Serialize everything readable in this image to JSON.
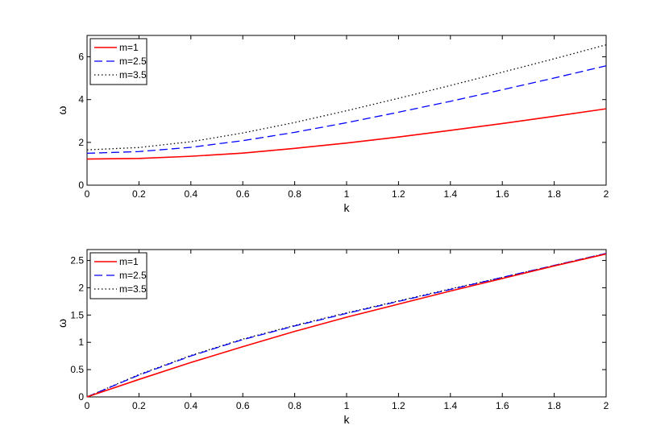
{
  "chart_data": [
    {
      "type": "line",
      "xlabel": "k",
      "ylabel": "ω",
      "xlim": [
        0,
        2
      ],
      "ylim": [
        0,
        7
      ],
      "xticks": [
        "0",
        "0.2",
        "0.4",
        "0.6",
        "0.8",
        "1",
        "1.2",
        "1.4",
        "1.6",
        "1.8",
        "2"
      ],
      "yticks": [
        "0",
        "2",
        "4",
        "6"
      ],
      "grid": false,
      "legend": "top-left",
      "x": [
        0,
        0.2,
        0.4,
        0.6,
        0.8,
        1.0,
        1.2,
        1.4,
        1.6,
        1.8,
        2.0
      ],
      "series": [
        {
          "name": "m=1",
          "style": "solid",
          "color": "#ff0000",
          "values": [
            1.22,
            1.25,
            1.35,
            1.5,
            1.72,
            1.97,
            2.25,
            2.56,
            2.88,
            3.22,
            3.57
          ]
        },
        {
          "name": "m=2.5",
          "style": "dashed",
          "color": "#0000ff",
          "values": [
            1.49,
            1.57,
            1.77,
            2.08,
            2.47,
            2.92,
            3.41,
            3.92,
            4.46,
            5.01,
            5.58
          ]
        },
        {
          "name": "m=3.5",
          "style": "dotted",
          "color": "#000000",
          "values": [
            1.65,
            1.76,
            2.03,
            2.44,
            2.93,
            3.48,
            4.06,
            4.66,
            5.28,
            5.91,
            6.56
          ]
        }
      ]
    },
    {
      "type": "line",
      "xlabel": "k",
      "ylabel": "ω",
      "xlim": [
        0,
        2
      ],
      "ylim": [
        0,
        2.7
      ],
      "xticks": [
        "0",
        "0.2",
        "0.4",
        "0.6",
        "0.8",
        "1",
        "1.2",
        "1.4",
        "1.6",
        "1.8",
        "2"
      ],
      "yticks": [
        "0",
        "0.5",
        "1",
        "1.5",
        "2",
        "2.5"
      ],
      "grid": false,
      "legend": "top-left",
      "x": [
        0,
        0.2,
        0.4,
        0.6,
        0.8,
        1.0,
        1.2,
        1.4,
        1.6,
        1.8,
        2.0
      ],
      "series": [
        {
          "name": "m=1",
          "style": "solid",
          "color": "#ff0000",
          "values": [
            0.0,
            0.32,
            0.63,
            0.92,
            1.2,
            1.46,
            1.7,
            1.94,
            2.17,
            2.4,
            2.62
          ]
        },
        {
          "name": "m=2.5",
          "style": "dashed",
          "color": "#0000ff",
          "values": [
            0.0,
            0.4,
            0.75,
            1.05,
            1.3,
            1.53,
            1.75,
            1.97,
            2.19,
            2.41,
            2.63
          ]
        },
        {
          "name": "m=3.5",
          "style": "dotted",
          "color": "#000000",
          "values": [
            0.0,
            0.41,
            0.76,
            1.06,
            1.31,
            1.54,
            1.76,
            1.98,
            2.19,
            2.41,
            2.63
          ]
        }
      ]
    }
  ]
}
